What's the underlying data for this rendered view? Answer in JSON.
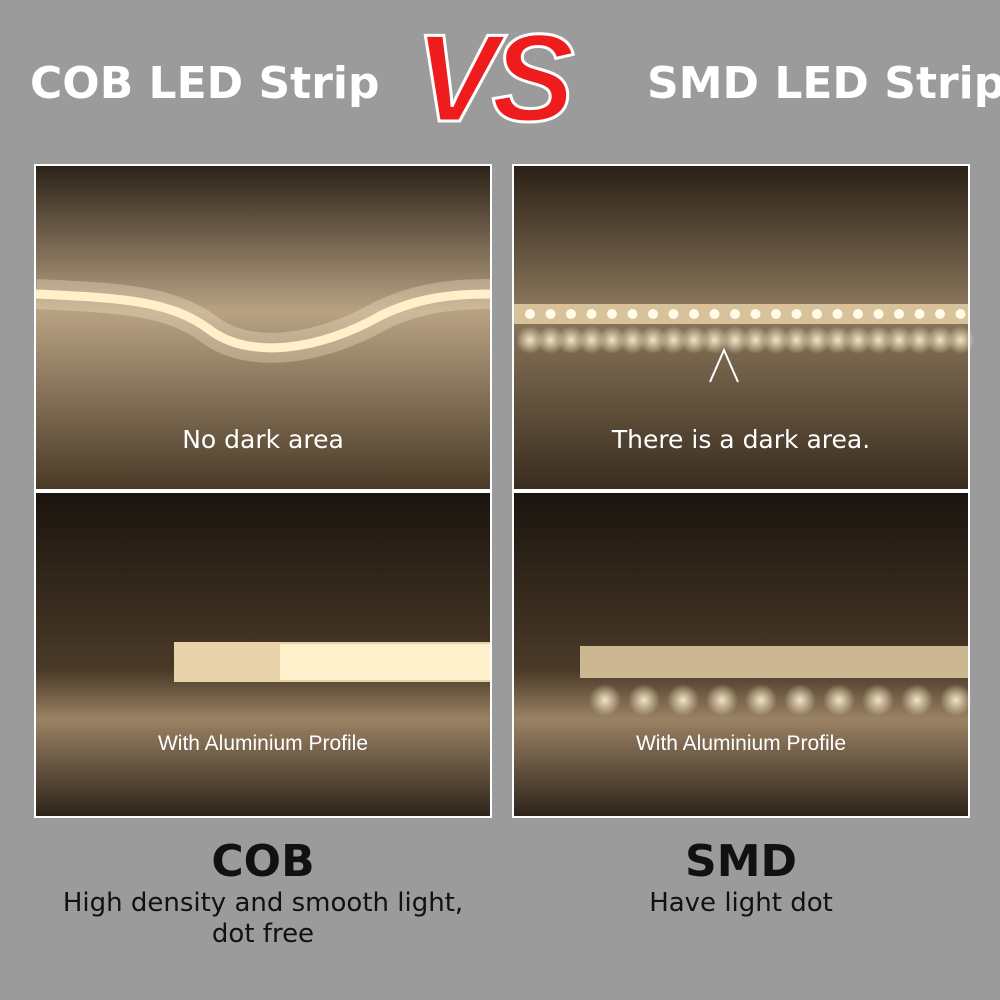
{
  "header": {
    "left_title": "COB LED Strip",
    "vs": "VS",
    "right_title": "SMD LED Strip"
  },
  "panels": {
    "cob_top": "No dark area",
    "smd_top": "There is a dark area.",
    "cob_bottom": "With Aluminium Profile",
    "smd_bottom": "With Aluminium Profile"
  },
  "footer": {
    "cob_title": "COB",
    "cob_text": "High density and smooth light, dot free",
    "smd_title": "SMD",
    "smd_text": "Have light dot"
  }
}
